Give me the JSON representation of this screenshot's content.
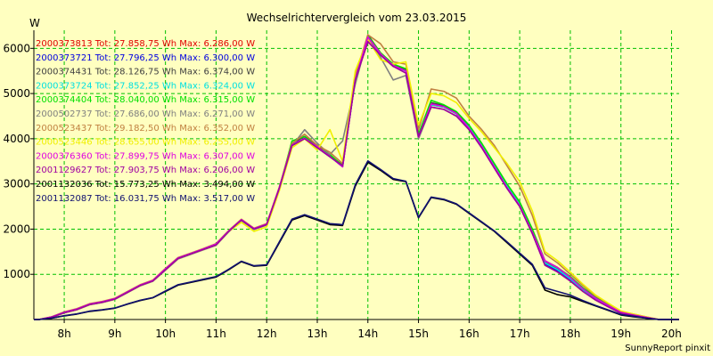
{
  "chart_data": {
    "type": "line",
    "title": "Wechselrichtervergleich vom 23.03.2015",
    "ylabel": "W",
    "xlabel": "",
    "footer": "SunnyReport pinxit",
    "xlim": [
      7.4,
      20.15
    ],
    "ylim": [
      0,
      6400
    ],
    "grid": true,
    "x_ticks": [
      8,
      9,
      10,
      11,
      12,
      13,
      14,
      15,
      16,
      17,
      18,
      19,
      20
    ],
    "x_tick_labels": [
      "8h",
      "9h",
      "10h",
      "11h",
      "12h",
      "13h",
      "14h",
      "15h",
      "16h",
      "17h",
      "18h",
      "19h",
      "20h"
    ],
    "y_ticks": [
      1000,
      2000,
      3000,
      4000,
      5000,
      6000
    ],
    "y_tick_labels": [
      "1000",
      "2000",
      "3000",
      "4000",
      "5000",
      "6000"
    ],
    "x": [
      7.4,
      7.5,
      7.75,
      8.0,
      8.25,
      8.5,
      8.75,
      9.0,
      9.25,
      9.5,
      9.75,
      10.0,
      10.25,
      10.5,
      10.75,
      11.0,
      11.25,
      11.5,
      11.75,
      12.0,
      12.25,
      12.5,
      12.75,
      13.0,
      13.25,
      13.5,
      13.75,
      14.0,
      14.25,
      14.5,
      14.75,
      15.0,
      15.25,
      15.5,
      15.75,
      16.0,
      16.25,
      16.5,
      16.75,
      17.0,
      17.25,
      17.5,
      17.75,
      18.0,
      18.25,
      18.5,
      18.75,
      19.0,
      19.25,
      19.5,
      19.75,
      20.0,
      20.15
    ],
    "series": [
      {
        "name": "2000373813",
        "color": "#e00000",
        "legend": "2000373813 Tot: 27.858,75 Wh Max: 6.286,00 W",
        "values": [
          0,
          0,
          50,
          150,
          220,
          330,
          380,
          450,
          600,
          750,
          850,
          1100,
          1350,
          1450,
          1550,
          1650,
          1950,
          2200,
          2000,
          2100,
          2900,
          3850,
          4000,
          3800,
          3600,
          3400,
          5300,
          6150,
          5850,
          5600,
          5500,
          4050,
          4750,
          4700,
          4550,
          4250,
          3850,
          3400,
          2950,
          2550,
          1950,
          1250,
          1100,
          900,
          650,
          450,
          300,
          150,
          100,
          50,
          0,
          0,
          0
        ]
      },
      {
        "name": "2000373721",
        "color": "#0000e0",
        "legend": "2000373721 Tot: 27.796,25 Wh Max: 6.300,00 W",
        "values": [
          0,
          0,
          60,
          160,
          230,
          340,
          390,
          460,
          610,
          760,
          860,
          1120,
          1360,
          1460,
          1560,
          1670,
          1960,
          2210,
          2010,
          2110,
          2920,
          3860,
          4010,
          3820,
          3610,
          3380,
          5310,
          6200,
          5880,
          5620,
          5500,
          4040,
          4770,
          4710,
          4560,
          4230,
          3830,
          3380,
          2920,
          2520,
          1930,
          1230,
          1080,
          880,
          640,
          440,
          290,
          150,
          100,
          50,
          0,
          0,
          0
        ]
      },
      {
        "name": "2000374431",
        "color": "#404040",
        "legend": "2000374431 Tot: 28.126,75 Wh Max: 6.374,00 W",
        "values": [
          0,
          0,
          55,
          155,
          225,
          335,
          385,
          455,
          605,
          755,
          855,
          1110,
          1355,
          1455,
          1555,
          1660,
          1955,
          2205,
          2005,
          2105,
          2910,
          3900,
          4050,
          3840,
          3620,
          3420,
          5320,
          6300,
          5900,
          5640,
          5530,
          4060,
          4800,
          4730,
          4580,
          4280,
          3880,
          3420,
          2970,
          2570,
          1970,
          1260,
          1110,
          910,
          660,
          460,
          310,
          160,
          100,
          50,
          0,
          0,
          0
        ]
      },
      {
        "name": "2000373724",
        "color": "#00e0e0",
        "legend": "2000373724 Tot: 27.852,25 Wh Max: 6.324,00 W",
        "values": [
          0,
          0,
          50,
          150,
          220,
          330,
          380,
          450,
          600,
          750,
          850,
          1100,
          1350,
          1450,
          1550,
          1650,
          1950,
          2200,
          2000,
          2100,
          2900,
          3850,
          4000,
          3800,
          3600,
          3400,
          5300,
          6250,
          5850,
          5600,
          5500,
          4050,
          4750,
          4700,
          4550,
          4250,
          3850,
          3400,
          2950,
          2550,
          1950,
          1250,
          1100,
          900,
          650,
          450,
          300,
          150,
          100,
          50,
          0,
          0,
          0
        ]
      },
      {
        "name": "2000374404",
        "color": "#00e000",
        "legend": "2000374404 Tot: 28.040,00 Wh Max: 6.315,00 W",
        "values": [
          0,
          0,
          50,
          150,
          220,
          330,
          380,
          450,
          600,
          750,
          850,
          1100,
          1350,
          1450,
          1550,
          1650,
          1950,
          2200,
          2000,
          2100,
          2900,
          3950,
          4050,
          3800,
          3650,
          3400,
          5350,
          6280,
          5900,
          5650,
          5550,
          4100,
          4850,
          4750,
          4600,
          4300,
          3900,
          3450,
          3000,
          2600,
          2000,
          1300,
          1150,
          950,
          700,
          500,
          330,
          170,
          110,
          50,
          0,
          0,
          0
        ]
      },
      {
        "name": "2000502737",
        "color": "#808080",
        "legend": "2000502737 Tot: 27.686,00 Wh Max: 6.271,00 W",
        "values": [
          0,
          0,
          45,
          145,
          215,
          325,
          375,
          445,
          595,
          745,
          845,
          1090,
          1340,
          1440,
          1540,
          1640,
          1940,
          2190,
          1990,
          2090,
          2890,
          3840,
          4200,
          3900,
          3650,
          3950,
          5200,
          6250,
          5800,
          5300,
          5400,
          4000,
          4700,
          4650,
          4500,
          4200,
          3800,
          3350,
          2900,
          2500,
          1900,
          1200,
          1050,
          850,
          620,
          430,
          280,
          140,
          90,
          40,
          0,
          0,
          0
        ]
      },
      {
        "name": "2000523437",
        "color": "#c08040",
        "legend": "2000523437 Tot: 29.182,50 Wh Max: 6.352,00 W",
        "values": [
          0,
          0,
          60,
          170,
          240,
          350,
          400,
          470,
          620,
          770,
          870,
          1130,
          1370,
          1470,
          1570,
          1680,
          1970,
          2220,
          2020,
          2120,
          2930,
          3900,
          4100,
          3850,
          3700,
          3450,
          5400,
          6300,
          6100,
          5700,
          5650,
          4200,
          5100,
          5050,
          4900,
          4500,
          4200,
          3850,
          3400,
          2950,
          2300,
          1450,
          1250,
          1000,
          750,
          520,
          350,
          180,
          120,
          60,
          0,
          0,
          0
        ]
      },
      {
        "name": "2000523446",
        "color": "#f0f000",
        "legend": "2000523446 Tot: 28.655,00 Wh Max: 6.255,00 W",
        "values": [
          0,
          0,
          50,
          150,
          220,
          330,
          380,
          450,
          600,
          750,
          850,
          1100,
          1350,
          1450,
          1550,
          1650,
          1950,
          2150,
          1950,
          2050,
          2850,
          3800,
          4000,
          3750,
          4200,
          3500,
          5500,
          6200,
          5750,
          5650,
          5700,
          4300,
          5000,
          4950,
          4800,
          4450,
          4150,
          3800,
          3450,
          3050,
          2400,
          1500,
          1300,
          1050,
          780,
          540,
          360,
          190,
          120,
          60,
          0,
          0,
          0
        ]
      },
      {
        "name": "2000376360",
        "color": "#e000e0",
        "legend": "2000376360 Tot: 27.899,75 Wh Max: 6.307,00 W",
        "values": [
          0,
          0,
          55,
          160,
          230,
          340,
          390,
          460,
          610,
          760,
          860,
          1120,
          1360,
          1460,
          1560,
          1670,
          1960,
          2210,
          2010,
          2110,
          2920,
          3860,
          4010,
          3820,
          3610,
          3380,
          5310,
          6250,
          5880,
          5620,
          5500,
          4040,
          4770,
          4710,
          4560,
          4230,
          3830,
          3380,
          2920,
          2520,
          1930,
          1300,
          1150,
          930,
          680,
          470,
          310,
          160,
          100,
          50,
          0,
          0,
          0
        ]
      },
      {
        "name": "2001129627",
        "color": "#a000a0",
        "legend": "2001129627 Tot: 27.903,75 Wh Max: 6.206,00 W",
        "values": [
          0,
          0,
          50,
          150,
          220,
          330,
          380,
          450,
          600,
          750,
          850,
          1100,
          1350,
          1450,
          1550,
          1650,
          1950,
          2200,
          2000,
          2100,
          2900,
          3850,
          4000,
          3800,
          3600,
          3400,
          5300,
          6150,
          5850,
          5600,
          5450,
          4050,
          4700,
          4650,
          4500,
          4200,
          3800,
          3350,
          2900,
          2500,
          1900,
          1200,
          1050,
          850,
          620,
          430,
          280,
          140,
          90,
          40,
          0,
          0,
          0
        ]
      },
      {
        "name": "2001132036",
        "color": "#000000",
        "legend": "2001132036 Tot: 15.773,25 Wh Max: 3.494,00 W",
        "values": [
          0,
          0,
          30,
          80,
          120,
          180,
          210,
          250,
          340,
          420,
          480,
          620,
          760,
          820,
          880,
          940,
          1100,
          1280,
          1180,
          1200,
          1700,
          2200,
          2300,
          2200,
          2100,
          2080,
          2950,
          3480,
          3300,
          3100,
          3050,
          2250,
          2700,
          2650,
          2550,
          2350,
          2150,
          1950,
          1700,
          1450,
          1200,
          650,
          550,
          500,
          400,
          300,
          200,
          100,
          60,
          30,
          0,
          0,
          0
        ]
      },
      {
        "name": "2001132087",
        "color": "#101070",
        "legend": "2001132087 Tot: 16.031,75 Wh Max: 3.517,00 W",
        "values": [
          0,
          0,
          30,
          85,
          125,
          185,
          215,
          255,
          345,
          425,
          485,
          630,
          770,
          830,
          890,
          950,
          1110,
          1290,
          1190,
          1210,
          1720,
          2220,
          2320,
          2220,
          2120,
          2100,
          2980,
          3510,
          3320,
          3120,
          3060,
          2260,
          2710,
          2660,
          2560,
          2360,
          2160,
          1960,
          1720,
          1470,
          1220,
          700,
          620,
          540,
          420,
          310,
          210,
          110,
          70,
          30,
          0,
          0,
          0
        ]
      }
    ]
  }
}
